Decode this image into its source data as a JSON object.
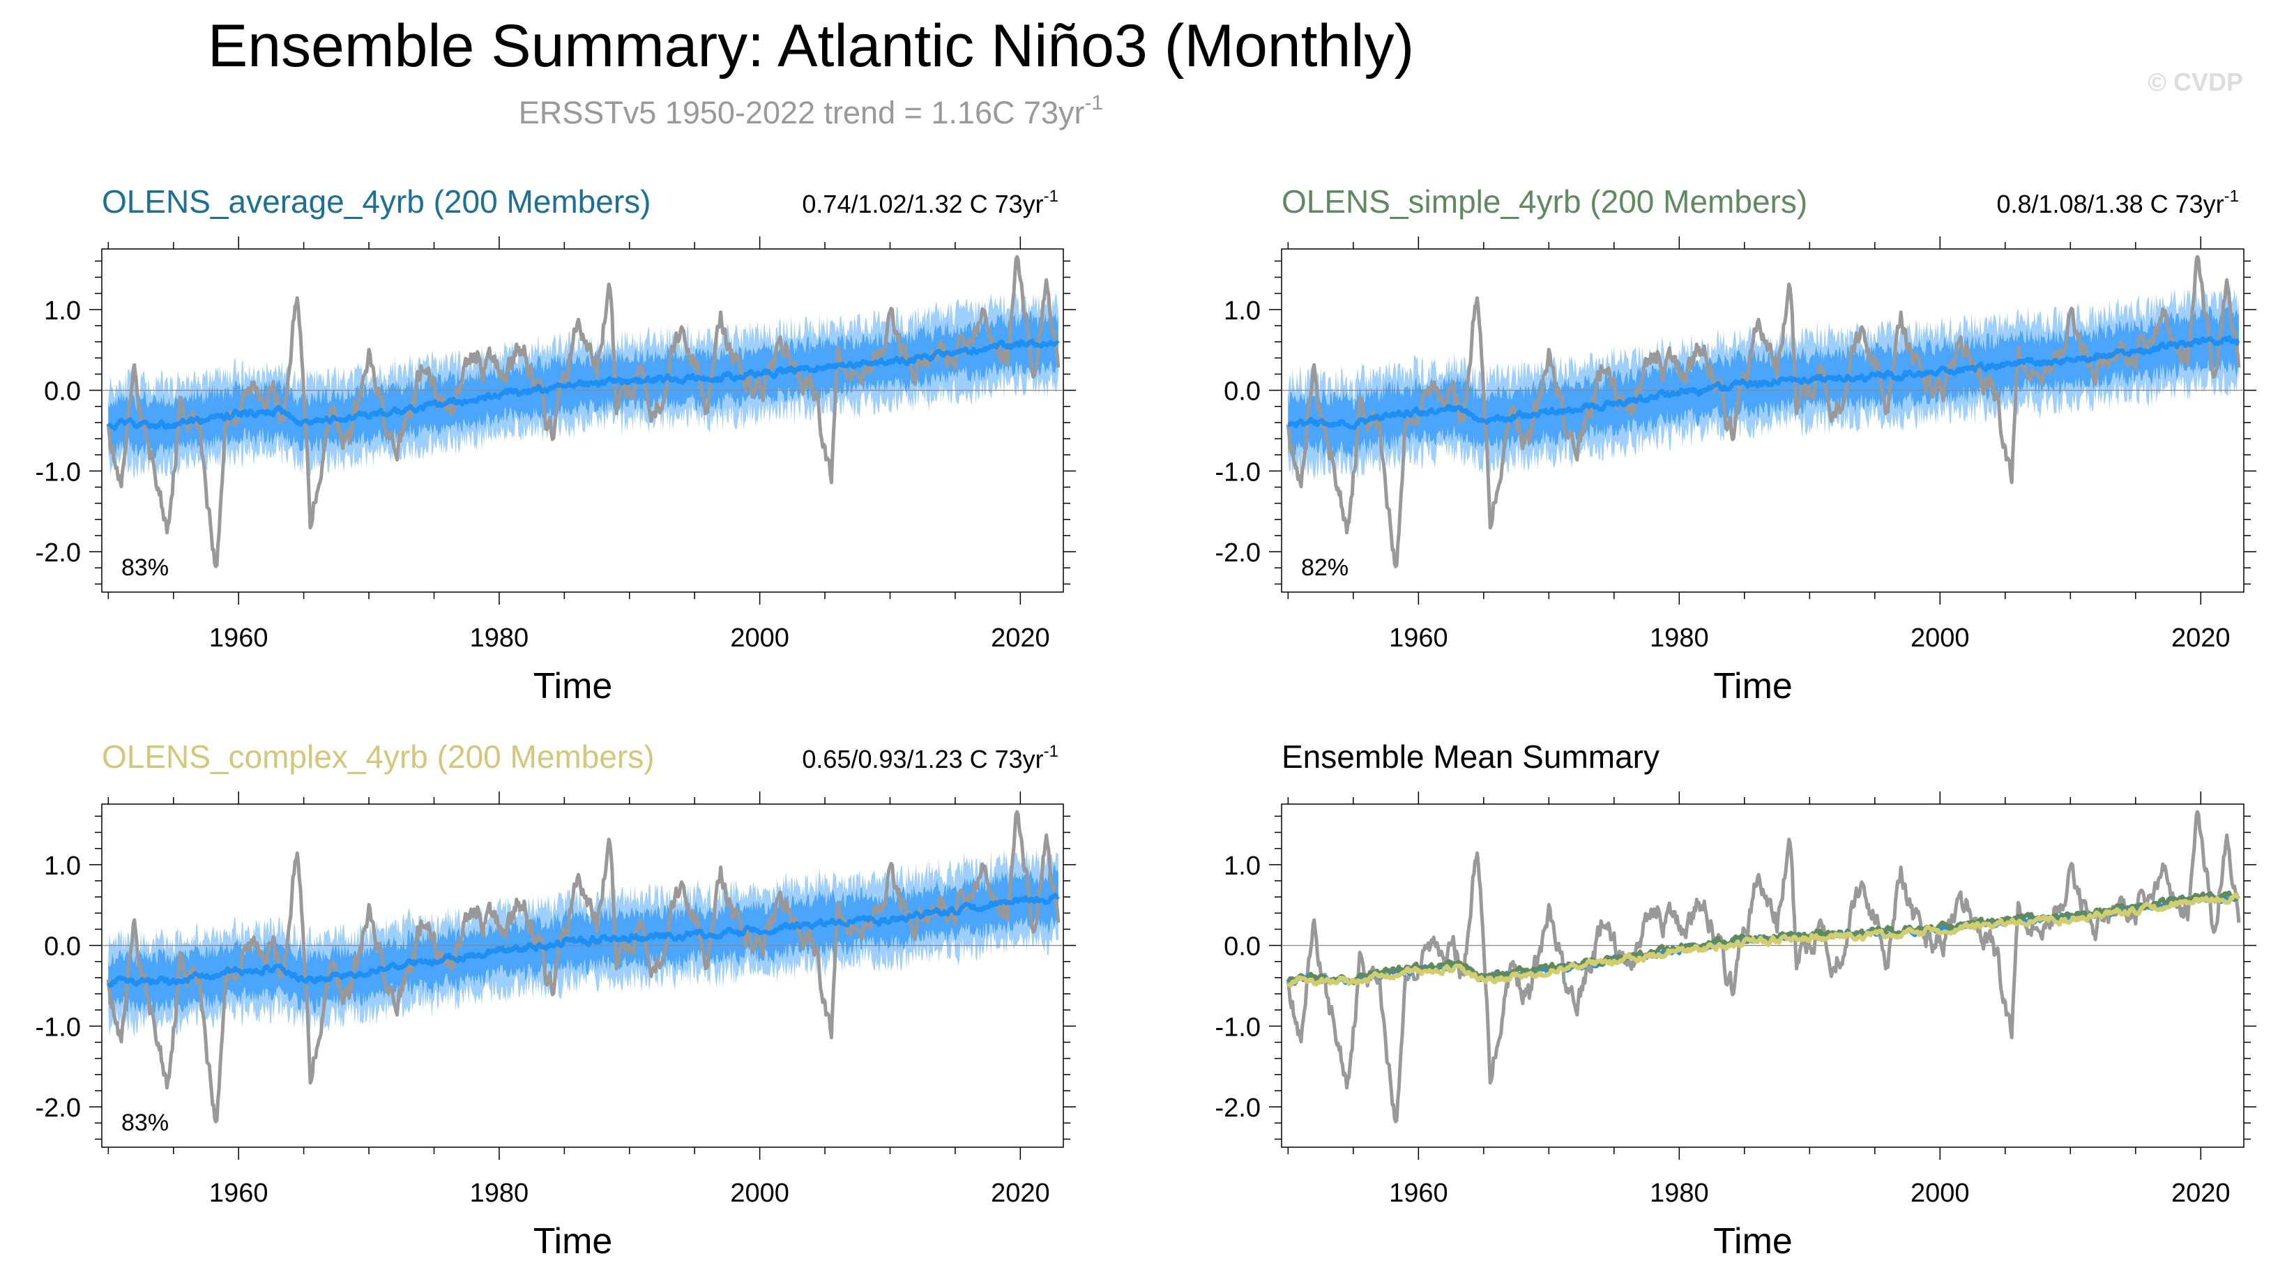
{
  "page": {
    "title": "Ensemble Summary: Atlantic Niño3 (Monthly)",
    "subtitle_main": "ERSSTv5 1950-2022 trend = 1.16C 73yr",
    "subtitle_sup": "-1",
    "watermark": "© CVDP"
  },
  "colors": {
    "obs": "#999999",
    "ens_outer": "#9fcffc",
    "ens_inner": "#4aa5fb",
    "ens_mean": "#1e8ff4",
    "average_title": "#1c6f96",
    "simple_title": "#5f8a5f",
    "complex_title": "#d2c77a",
    "mean_simple_line": "#5f8a5f",
    "mean_complex_line": "#d2cd6e",
    "subtitle": "#999999",
    "watermark": "#dddddd"
  },
  "chart_data": [
    {
      "id": "average",
      "type": "line",
      "title": "OLENS_average_4yrb (200 Members)",
      "trend_text": "0.74/1.02/1.32 C 73yr",
      "trend_sup": "-1",
      "percent": "83%",
      "xlabel": "Time",
      "ylabel": "",
      "xlim": [
        1949.5,
        2023.3
      ],
      "ylim": [
        -2.5,
        1.75
      ],
      "x_ticks": [
        "1960",
        "1980",
        "2000",
        "2020"
      ],
      "y_ticks": [
        "1.0",
        "0.0",
        "-1.0",
        "-2.0"
      ],
      "series": [
        {
          "name": "ERSSTv5 observations",
          "style": "obs"
        },
        {
          "name": "Ensemble 10-90% spread",
          "style": "band"
        },
        {
          "name": "Ensemble mean",
          "style": "ens_mean"
        }
      ]
    },
    {
      "id": "simple",
      "type": "line",
      "title": "OLENS_simple_4yrb (200 Members)",
      "trend_text": "0.8/1.08/1.38 C 73yr",
      "trend_sup": "-1",
      "percent": "82%",
      "xlabel": "Time",
      "ylabel": "",
      "xlim": [
        1949.5,
        2023.3
      ],
      "ylim": [
        -2.5,
        1.75
      ],
      "x_ticks": [
        "1960",
        "1980",
        "2000",
        "2020"
      ],
      "y_ticks": [
        "1.0",
        "0.0",
        "-1.0",
        "-2.0"
      ],
      "series": [
        {
          "name": "ERSSTv5 observations",
          "style": "obs"
        },
        {
          "name": "Ensemble 10-90% spread",
          "style": "band"
        },
        {
          "name": "Ensemble mean",
          "style": "ens_mean"
        }
      ]
    },
    {
      "id": "complex",
      "type": "line",
      "title": "OLENS_complex_4yrb (200 Members)",
      "trend_text": "0.65/0.93/1.23 C 73yr",
      "trend_sup": "-1",
      "percent": "83%",
      "xlabel": "Time",
      "ylabel": "",
      "xlim": [
        1949.5,
        2023.3
      ],
      "ylim": [
        -2.5,
        1.75
      ],
      "x_ticks": [
        "1960",
        "1980",
        "2000",
        "2020"
      ],
      "y_ticks": [
        "1.0",
        "0.0",
        "-1.0",
        "-2.0"
      ],
      "series": [
        {
          "name": "ERSSTv5 observations",
          "style": "obs"
        },
        {
          "name": "Ensemble 10-90% spread",
          "style": "band"
        },
        {
          "name": "Ensemble mean",
          "style": "ens_mean"
        }
      ]
    },
    {
      "id": "mean-summary",
      "type": "line",
      "title": "Ensemble Mean Summary",
      "trend_text": "",
      "trend_sup": "",
      "percent": "",
      "xlabel": "Time",
      "ylabel": "",
      "xlim": [
        1949.5,
        2023.3
      ],
      "ylim": [
        -2.5,
        1.75
      ],
      "x_ticks": [
        "1960",
        "1980",
        "2000",
        "2020"
      ],
      "y_ticks": [
        "1.0",
        "0.0",
        "-1.0",
        "-2.0"
      ],
      "series": [
        {
          "name": "ERSSTv5 observations",
          "style": "obs"
        },
        {
          "name": "OLENS_average_4yrb ensemble mean",
          "style": "mean_average"
        },
        {
          "name": "OLENS_simple_4yrb ensemble mean",
          "style": "mean_simple"
        },
        {
          "name": "OLENS_complex_4yrb ensemble mean",
          "style": "mean_complex"
        }
      ]
    }
  ],
  "obs_anchor_points": {
    "x": [
      1950.0,
      1951.0,
      1952.0,
      1953.0,
      1954.5,
      1955.5,
      1957.0,
      1958.3,
      1959.0,
      1960.0,
      1962.0,
      1963.5,
      1964.5,
      1965.5,
      1967.0,
      1968.5,
      1970.0,
      1972.0,
      1974.0,
      1976.0,
      1978.0,
      1980.0,
      1982.0,
      1984.0,
      1986.0,
      1987.5,
      1988.5,
      1989.0,
      1991.0,
      1992.0,
      1994.0,
      1996.0,
      1997.0,
      1998.0,
      2000.0,
      2002.0,
      2004.0,
      2005.5,
      2006.0,
      2008.0,
      2010.0,
      2012.0,
      2014.0,
      2016.0,
      2017.0,
      2019.0,
      2019.8,
      2021.0,
      2022.0,
      2023.0
    ],
    "y": [
      -0.3,
      -1.3,
      0.1,
      -0.7,
      -1.7,
      -0.2,
      -0.4,
      -2.25,
      -0.3,
      -0.2,
      0.1,
      -0.3,
      1.3,
      -1.6,
      -0.2,
      -0.6,
      0.3,
      -0.9,
      0.2,
      -0.3,
      0.5,
      0.2,
      0.6,
      -0.6,
      0.8,
      0.3,
      1.3,
      -0.3,
      0.4,
      -0.2,
      0.8,
      -0.1,
      1.1,
      0.2,
      0.1,
      0.4,
      0.1,
      -1.1,
      0.6,
      0.2,
      0.8,
      0.3,
      0.4,
      0.5,
      0.9,
      0.4,
      1.6,
      0.2,
      1.4,
      0.2
    ]
  },
  "ensemble_mean_anchor_points": {
    "x": [
      1950,
      1955,
      1960,
      1963,
      1965,
      1970,
      1975,
      1980,
      1985,
      1990,
      1995,
      2000,
      2005,
      2010,
      2015,
      2020,
      2023
    ],
    "y": [
      -0.42,
      -0.42,
      -0.3,
      -0.25,
      -0.42,
      -0.3,
      -0.18,
      -0.05,
      0.05,
      0.12,
      0.15,
      0.2,
      0.3,
      0.35,
      0.45,
      0.58,
      0.6
    ]
  }
}
